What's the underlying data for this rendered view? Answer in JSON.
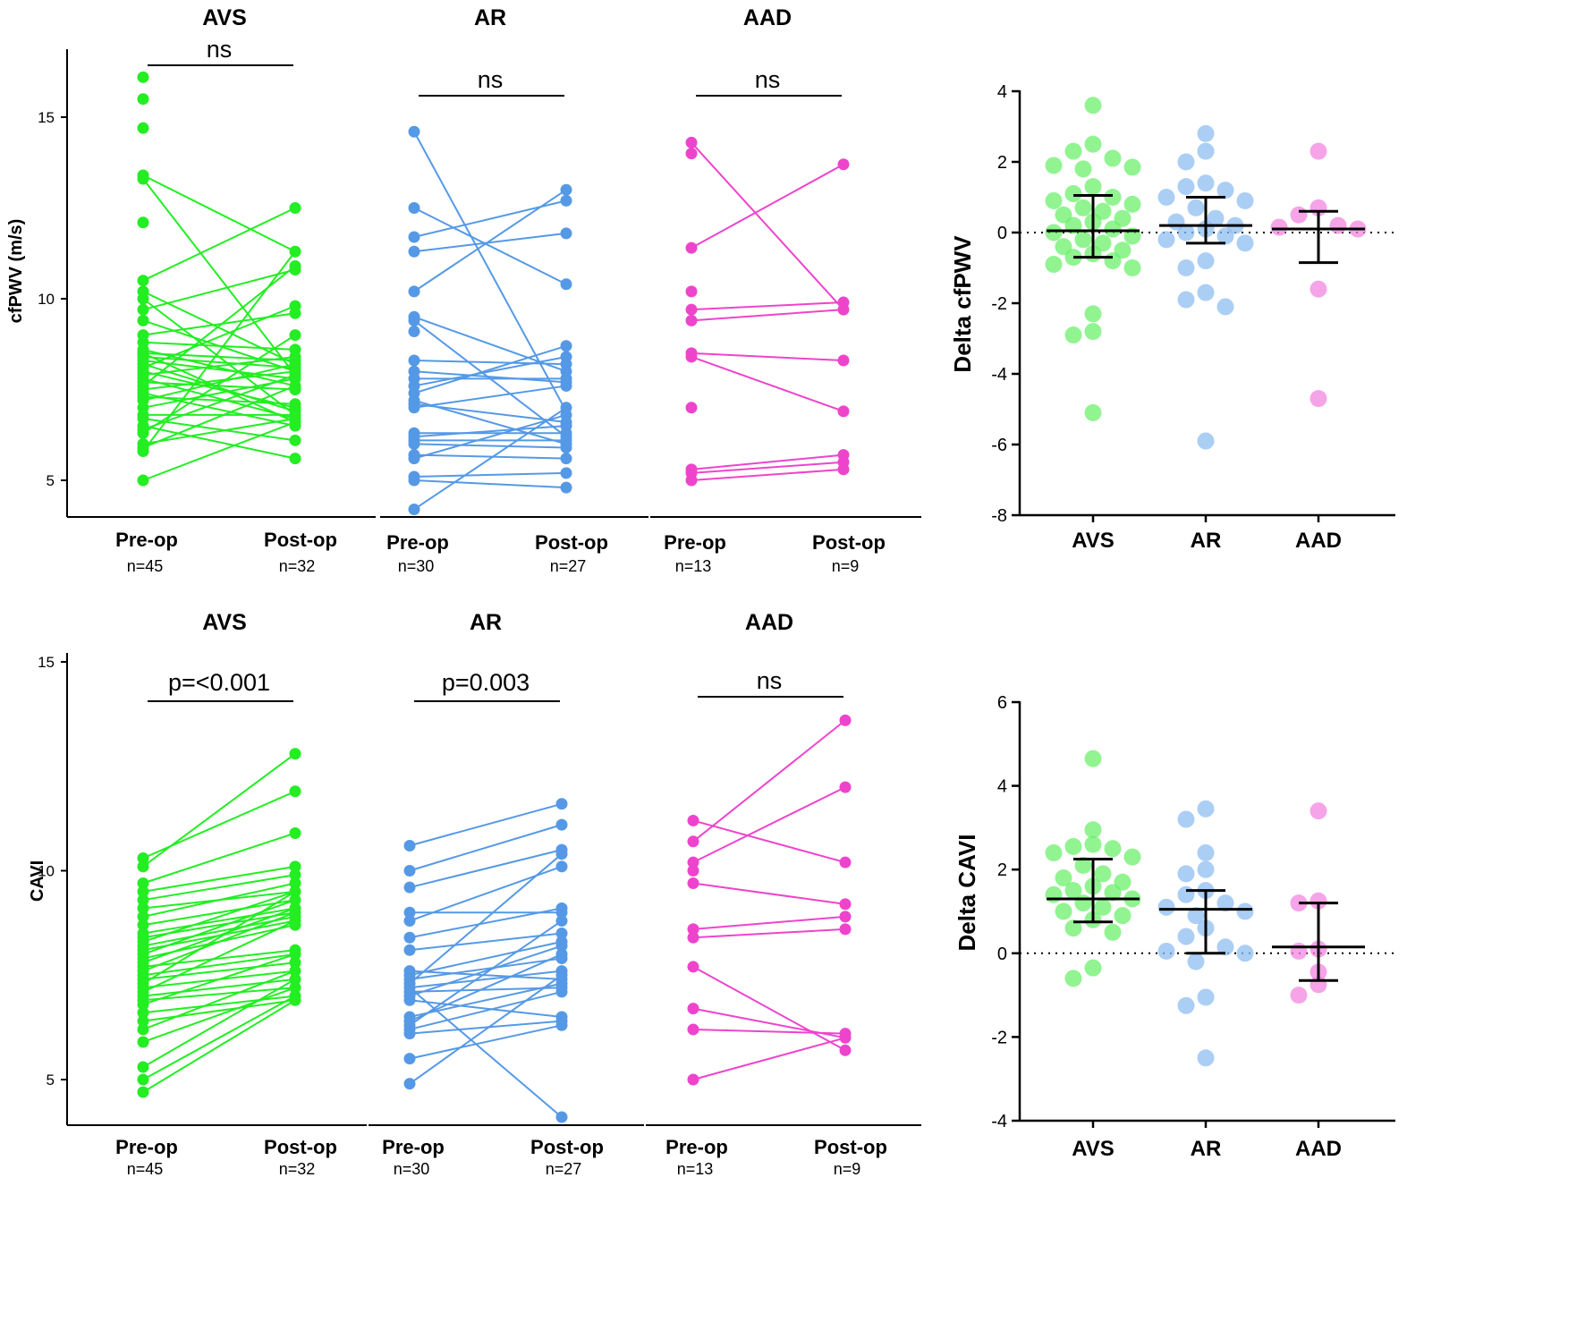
{
  "colors": {
    "AVS": "#22ee22",
    "AR": "#5599e6",
    "AAD": "#ee44cc",
    "dot_AVS": "#6cf06c",
    "dot_AR": "#8fbdf2",
    "dot_AAD": "#f285e0"
  },
  "chart_data": [
    {
      "id": "cfpwv-paired",
      "type": "scatter",
      "variant": "paired-lines",
      "ylabel": "cfPWV (m/s)",
      "ylim": [
        4,
        17
      ],
      "yticks": [
        5,
        10,
        15
      ],
      "panels": [
        {
          "group": "AVS",
          "title": "AVS",
          "sig": "ns",
          "x_labels": [
            "Pre-op",
            "Post-op"
          ],
          "n_labels": [
            "n=45",
            "n=32"
          ],
          "pre": [
            16.1,
            15.5,
            14.7,
            13.4,
            13.3,
            12.1,
            10.5,
            10.2,
            10.0,
            9.7,
            9.4,
            9.0,
            8.8,
            8.6,
            8.5,
            8.5,
            8.4,
            8.3,
            8.2,
            8.1,
            8.0,
            7.9,
            7.8,
            7.7,
            7.6,
            7.5,
            7.4,
            7.3,
            7.2,
            7.0,
            6.8,
            6.7,
            6.5,
            6.4,
            6.3,
            6.0,
            5.9,
            5.8,
            5.0
          ],
          "post": [
            12.5,
            11.3,
            10.9,
            10.8,
            9.8,
            9.6,
            9.0,
            8.6,
            8.4,
            8.3,
            8.2,
            8.1,
            8.0,
            7.9,
            7.8,
            7.6,
            7.5,
            7.1,
            7.0,
            6.9,
            6.8,
            6.7,
            6.6,
            6.5,
            6.1,
            5.6
          ],
          "pairs": [
            [
              13.3,
              7.9
            ],
            [
              13.4,
              11.3
            ],
            [
              10.5,
              12.5
            ],
            [
              10.2,
              8.2
            ],
            [
              10.0,
              6.8
            ],
            [
              9.7,
              10.8
            ],
            [
              9.4,
              8.0
            ],
            [
              9.0,
              9.6
            ],
            [
              8.8,
              8.6
            ],
            [
              8.6,
              7.6
            ],
            [
              8.5,
              8.3
            ],
            [
              8.5,
              6.6
            ],
            [
              8.4,
              8.1
            ],
            [
              8.3,
              7.8
            ],
            [
              8.2,
              6.9
            ],
            [
              8.1,
              9.8
            ],
            [
              8.0,
              7.0
            ],
            [
              7.9,
              8.4
            ],
            [
              7.8,
              6.7
            ],
            [
              7.7,
              7.5
            ],
            [
              7.6,
              10.9
            ],
            [
              7.5,
              8.0
            ],
            [
              7.4,
              6.5
            ],
            [
              7.3,
              7.1
            ],
            [
              7.2,
              8.2
            ],
            [
              7.0,
              7.8
            ],
            [
              6.8,
              6.8
            ],
            [
              6.7,
              6.1
            ],
            [
              6.5,
              5.6
            ],
            [
              6.4,
              7.9
            ],
            [
              6.3,
              9.0
            ],
            [
              6.0,
              6.7
            ],
            [
              5.9,
              7.6
            ],
            [
              5.8,
              11.3
            ],
            [
              5.0,
              6.6
            ]
          ]
        },
        {
          "group": "AR",
          "title": "AR",
          "sig": "ns",
          "x_labels": [
            "Pre-op",
            "Post-op"
          ],
          "n_labels": [
            "n=30",
            "n=27"
          ],
          "pre": [
            14.6,
            12.5,
            11.7,
            11.3,
            10.2,
            9.5,
            9.4,
            9.1,
            8.3,
            8.0,
            7.8,
            7.6,
            7.4,
            7.2,
            7.1,
            7.0,
            6.3,
            6.2,
            6.1,
            6.0,
            5.7,
            5.6,
            5.1,
            5.0,
            4.2
          ],
          "post": [
            13.0,
            12.7,
            11.8,
            10.4,
            8.7,
            8.4,
            8.2,
            8.0,
            7.8,
            7.7,
            7.6,
            7.0,
            6.8,
            6.6,
            6.5,
            6.3,
            6.2,
            6.1,
            6.0,
            5.9,
            5.6,
            5.2,
            4.8
          ],
          "pairs": [
            [
              14.6,
              6.9
            ],
            [
              12.5,
              10.4
            ],
            [
              11.7,
              12.7
            ],
            [
              11.3,
              11.8
            ],
            [
              10.2,
              13.0
            ],
            [
              9.5,
              8.0
            ],
            [
              9.4,
              6.2
            ],
            [
              8.3,
              8.2
            ],
            [
              8.0,
              7.7
            ],
            [
              7.8,
              7.8
            ],
            [
              7.6,
              8.4
            ],
            [
              7.4,
              8.7
            ],
            [
              7.2,
              6.0
            ],
            [
              7.1,
              6.6
            ],
            [
              7.0,
              7.6
            ],
            [
              6.3,
              6.3
            ],
            [
              6.2,
              6.5
            ],
            [
              6.1,
              6.1
            ],
            [
              6.0,
              5.9
            ],
            [
              5.7,
              5.6
            ],
            [
              5.6,
              6.8
            ],
            [
              5.1,
              5.2
            ],
            [
              5.0,
              4.8
            ],
            [
              4.2,
              7.0
            ]
          ]
        },
        {
          "group": "AAD",
          "title": "AAD",
          "sig": "ns",
          "x_labels": [
            "Pre-op",
            "Post-op"
          ],
          "n_labels": [
            "n=13",
            "n=9"
          ],
          "pre": [
            14.3,
            14.0,
            11.4,
            10.2,
            9.7,
            9.4,
            8.5,
            8.4,
            7.0,
            5.3,
            5.2,
            5.0
          ],
          "post": [
            13.7,
            9.9,
            9.7,
            8.3,
            6.9,
            5.7,
            5.5,
            5.3
          ],
          "pairs": [
            [
              14.3,
              9.7
            ],
            [
              11.4,
              13.7
            ],
            [
              9.7,
              9.9
            ],
            [
              9.4,
              9.7
            ],
            [
              8.4,
              6.9
            ],
            [
              8.5,
              8.3
            ],
            [
              5.3,
              5.7
            ],
            [
              5.2,
              5.5
            ],
            [
              5.0,
              5.3
            ]
          ]
        }
      ]
    },
    {
      "id": "cavi-paired",
      "type": "scatter",
      "variant": "paired-lines",
      "ylabel": "CAVI",
      "ylim": [
        4,
        15
      ],
      "yticks": [
        5,
        10,
        15
      ],
      "panels": [
        {
          "group": "AVS",
          "title": "AVS",
          "sig": "p=<0.001",
          "x_labels": [
            "Pre-op",
            "Post-op"
          ],
          "n_labels": [
            "n=45",
            "n=32"
          ],
          "pre": [
            10.3,
            10.1,
            9.7,
            9.5,
            9.3,
            9.1,
            8.9,
            8.7,
            8.5,
            8.4,
            8.3,
            8.2,
            8.1,
            8.0,
            7.9,
            7.8,
            7.7,
            7.6,
            7.5,
            7.4,
            7.3,
            7.2,
            7.1,
            7.0,
            6.9,
            6.8,
            6.6,
            6.4,
            6.2,
            5.9,
            5.3,
            5.0,
            4.7
          ],
          "post": [
            12.8,
            11.9,
            10.9,
            10.1,
            9.9,
            9.7,
            9.5,
            9.3,
            9.1,
            9.0,
            8.9,
            8.8,
            8.7,
            8.1,
            8.0,
            7.8,
            7.6,
            7.4,
            7.2,
            7.0,
            6.9
          ],
          "pairs": [
            [
              10.3,
              11.9
            ],
            [
              10.1,
              12.8
            ],
            [
              9.7,
              10.9
            ],
            [
              9.5,
              10.1
            ],
            [
              9.3,
              9.9
            ],
            [
              9.1,
              9.5
            ],
            [
              8.9,
              9.7
            ],
            [
              8.7,
              9.3
            ],
            [
              8.5,
              9.1
            ],
            [
              8.4,
              9.0
            ],
            [
              8.3,
              9.5
            ],
            [
              8.2,
              8.9
            ],
            [
              8.1,
              8.8
            ],
            [
              8.0,
              9.3
            ],
            [
              7.9,
              8.7
            ],
            [
              7.8,
              9.1
            ],
            [
              7.7,
              8.1
            ],
            [
              7.6,
              9.0
            ],
            [
              7.5,
              8.0
            ],
            [
              7.4,
              7.8
            ],
            [
              7.3,
              9.5
            ],
            [
              7.2,
              7.6
            ],
            [
              7.1,
              8.8
            ],
            [
              7.0,
              7.4
            ],
            [
              6.9,
              7.2
            ],
            [
              6.8,
              8.0
            ],
            [
              6.6,
              7.0
            ],
            [
              6.4,
              6.9
            ],
            [
              6.2,
              7.6
            ],
            [
              5.9,
              7.2
            ],
            [
              5.3,
              7.4
            ],
            [
              5.0,
              7.0
            ],
            [
              4.7,
              6.9
            ]
          ]
        },
        {
          "group": "AR",
          "title": "AR",
          "sig": "p=0.003",
          "x_labels": [
            "Pre-op",
            "Post-op"
          ],
          "n_labels": [
            "n=30",
            "n=27"
          ],
          "pre": [
            10.6,
            10.0,
            9.6,
            9.0,
            8.8,
            8.4,
            8.1,
            7.6,
            7.5,
            7.4,
            7.3,
            7.2,
            7.1,
            7.0,
            6.9,
            6.5,
            6.4,
            6.3,
            6.2,
            6.1,
            5.5,
            4.9
          ],
          "post": [
            11.6,
            11.1,
            10.5,
            10.4,
            10.1,
            9.1,
            9.0,
            8.8,
            8.5,
            8.3,
            8.2,
            8.0,
            7.9,
            7.6,
            7.5,
            7.4,
            7.3,
            7.2,
            7.1,
            6.5,
            6.4,
            6.3,
            4.1
          ],
          "pairs": [
            [
              10.6,
              11.6
            ],
            [
              10.0,
              11.1
            ],
            [
              9.6,
              10.5
            ],
            [
              9.0,
              9.0
            ],
            [
              8.8,
              10.1
            ],
            [
              8.4,
              9.1
            ],
            [
              8.1,
              8.5
            ],
            [
              7.6,
              7.4
            ],
            [
              7.5,
              8.3
            ],
            [
              7.4,
              7.9
            ],
            [
              7.3,
              10.4
            ],
            [
              7.2,
              7.6
            ],
            [
              7.1,
              7.2
            ],
            [
              7.0,
              8.2
            ],
            [
              6.9,
              6.5
            ],
            [
              6.5,
              7.3
            ],
            [
              6.4,
              8.0
            ],
            [
              6.3,
              8.8
            ],
            [
              6.2,
              7.1
            ],
            [
              6.1,
              6.4
            ],
            [
              5.5,
              6.3
            ],
            [
              4.9,
              7.5
            ],
            [
              7.2,
              4.1
            ]
          ]
        },
        {
          "group": "AAD",
          "title": "AAD",
          "sig": "ns",
          "x_labels": [
            "Pre-op",
            "Post-op"
          ],
          "n_labels": [
            "n=13",
            "n=9"
          ],
          "pre": [
            11.2,
            10.7,
            10.2,
            10.0,
            9.7,
            8.6,
            8.4,
            7.7,
            6.7,
            6.2,
            5.0
          ],
          "post": [
            13.6,
            12.0,
            10.2,
            9.2,
            8.9,
            8.6,
            6.1,
            6.0,
            5.7
          ],
          "pairs": [
            [
              11.2,
              10.2
            ],
            [
              10.7,
              13.6
            ],
            [
              10.2,
              12.0
            ],
            [
              9.7,
              9.2
            ],
            [
              8.4,
              8.6
            ],
            [
              8.6,
              8.9
            ],
            [
              7.7,
              5.7
            ],
            [
              6.7,
              6.0
            ],
            [
              6.2,
              6.1
            ],
            [
              5.0,
              6.0
            ]
          ]
        }
      ]
    },
    {
      "id": "delta-cfpwv",
      "type": "scatter",
      "variant": "dot-plot-median-iqr",
      "ylabel": "Delta cfPWV",
      "ylim": [
        -8,
        4
      ],
      "yticks": [
        -8,
        -6,
        -4,
        -2,
        0,
        2,
        4
      ],
      "categories": [
        "AVS",
        "AR",
        "AAD"
      ],
      "series": [
        {
          "name": "AVS",
          "median": 0.05,
          "q1": -0.7,
          "q3": 1.05,
          "values": [
            3.6,
            2.5,
            2.3,
            2.1,
            1.9,
            1.85,
            1.8,
            1.3,
            1.1,
            1.0,
            0.9,
            0.8,
            0.7,
            0.6,
            0.5,
            0.4,
            0.3,
            0.2,
            0.1,
            0.0,
            -0.1,
            -0.2,
            -0.3,
            -0.4,
            -0.5,
            -0.6,
            -0.7,
            -0.8,
            -0.9,
            -1.0,
            -2.3,
            -2.8,
            -2.9,
            -5.1
          ]
        },
        {
          "name": "AR",
          "median": 0.2,
          "q1": -0.3,
          "q3": 1.0,
          "values": [
            2.8,
            2.3,
            2.0,
            1.4,
            1.3,
            1.2,
            1.0,
            0.9,
            0.7,
            0.4,
            0.3,
            0.2,
            0.1,
            0.0,
            -0.1,
            -0.2,
            -0.3,
            -0.8,
            -1.0,
            -1.7,
            -1.9,
            -2.1,
            -5.9
          ]
        },
        {
          "name": "AAD",
          "median": 0.1,
          "q1": -0.85,
          "q3": 0.6,
          "values": [
            2.3,
            0.7,
            0.5,
            0.2,
            0.15,
            0.1,
            -1.6,
            -4.7
          ]
        }
      ]
    },
    {
      "id": "delta-cavi",
      "type": "scatter",
      "variant": "dot-plot-median-iqr",
      "ylabel": "Delta CAVI",
      "ylim": [
        -4,
        6
      ],
      "yticks": [
        -4,
        -2,
        0,
        2,
        4,
        6
      ],
      "categories": [
        "AVS",
        "AR",
        "AAD"
      ],
      "series": [
        {
          "name": "AVS",
          "median": 1.3,
          "q1": 0.75,
          "q3": 2.25,
          "values": [
            4.65,
            2.95,
            2.6,
            2.55,
            2.5,
            2.4,
            2.3,
            2.1,
            1.9,
            1.8,
            1.7,
            1.6,
            1.5,
            1.45,
            1.4,
            1.3,
            1.2,
            1.1,
            1.0,
            0.9,
            0.8,
            0.6,
            0.5,
            -0.35,
            -0.6
          ]
        },
        {
          "name": "AR",
          "median": 1.05,
          "q1": 0.0,
          "q3": 1.5,
          "values": [
            3.45,
            3.2,
            2.4,
            2.0,
            1.9,
            1.5,
            1.4,
            1.2,
            1.1,
            1.0,
            0.9,
            0.6,
            0.4,
            0.15,
            0.05,
            0.0,
            -0.2,
            -1.05,
            -1.25,
            -2.5
          ]
        },
        {
          "name": "AAD",
          "median": 0.15,
          "q1": -0.65,
          "q3": 1.2,
          "values": [
            3.4,
            1.25,
            1.2,
            0.1,
            0.05,
            -0.45,
            -0.75,
            -1.0
          ]
        }
      ]
    }
  ]
}
